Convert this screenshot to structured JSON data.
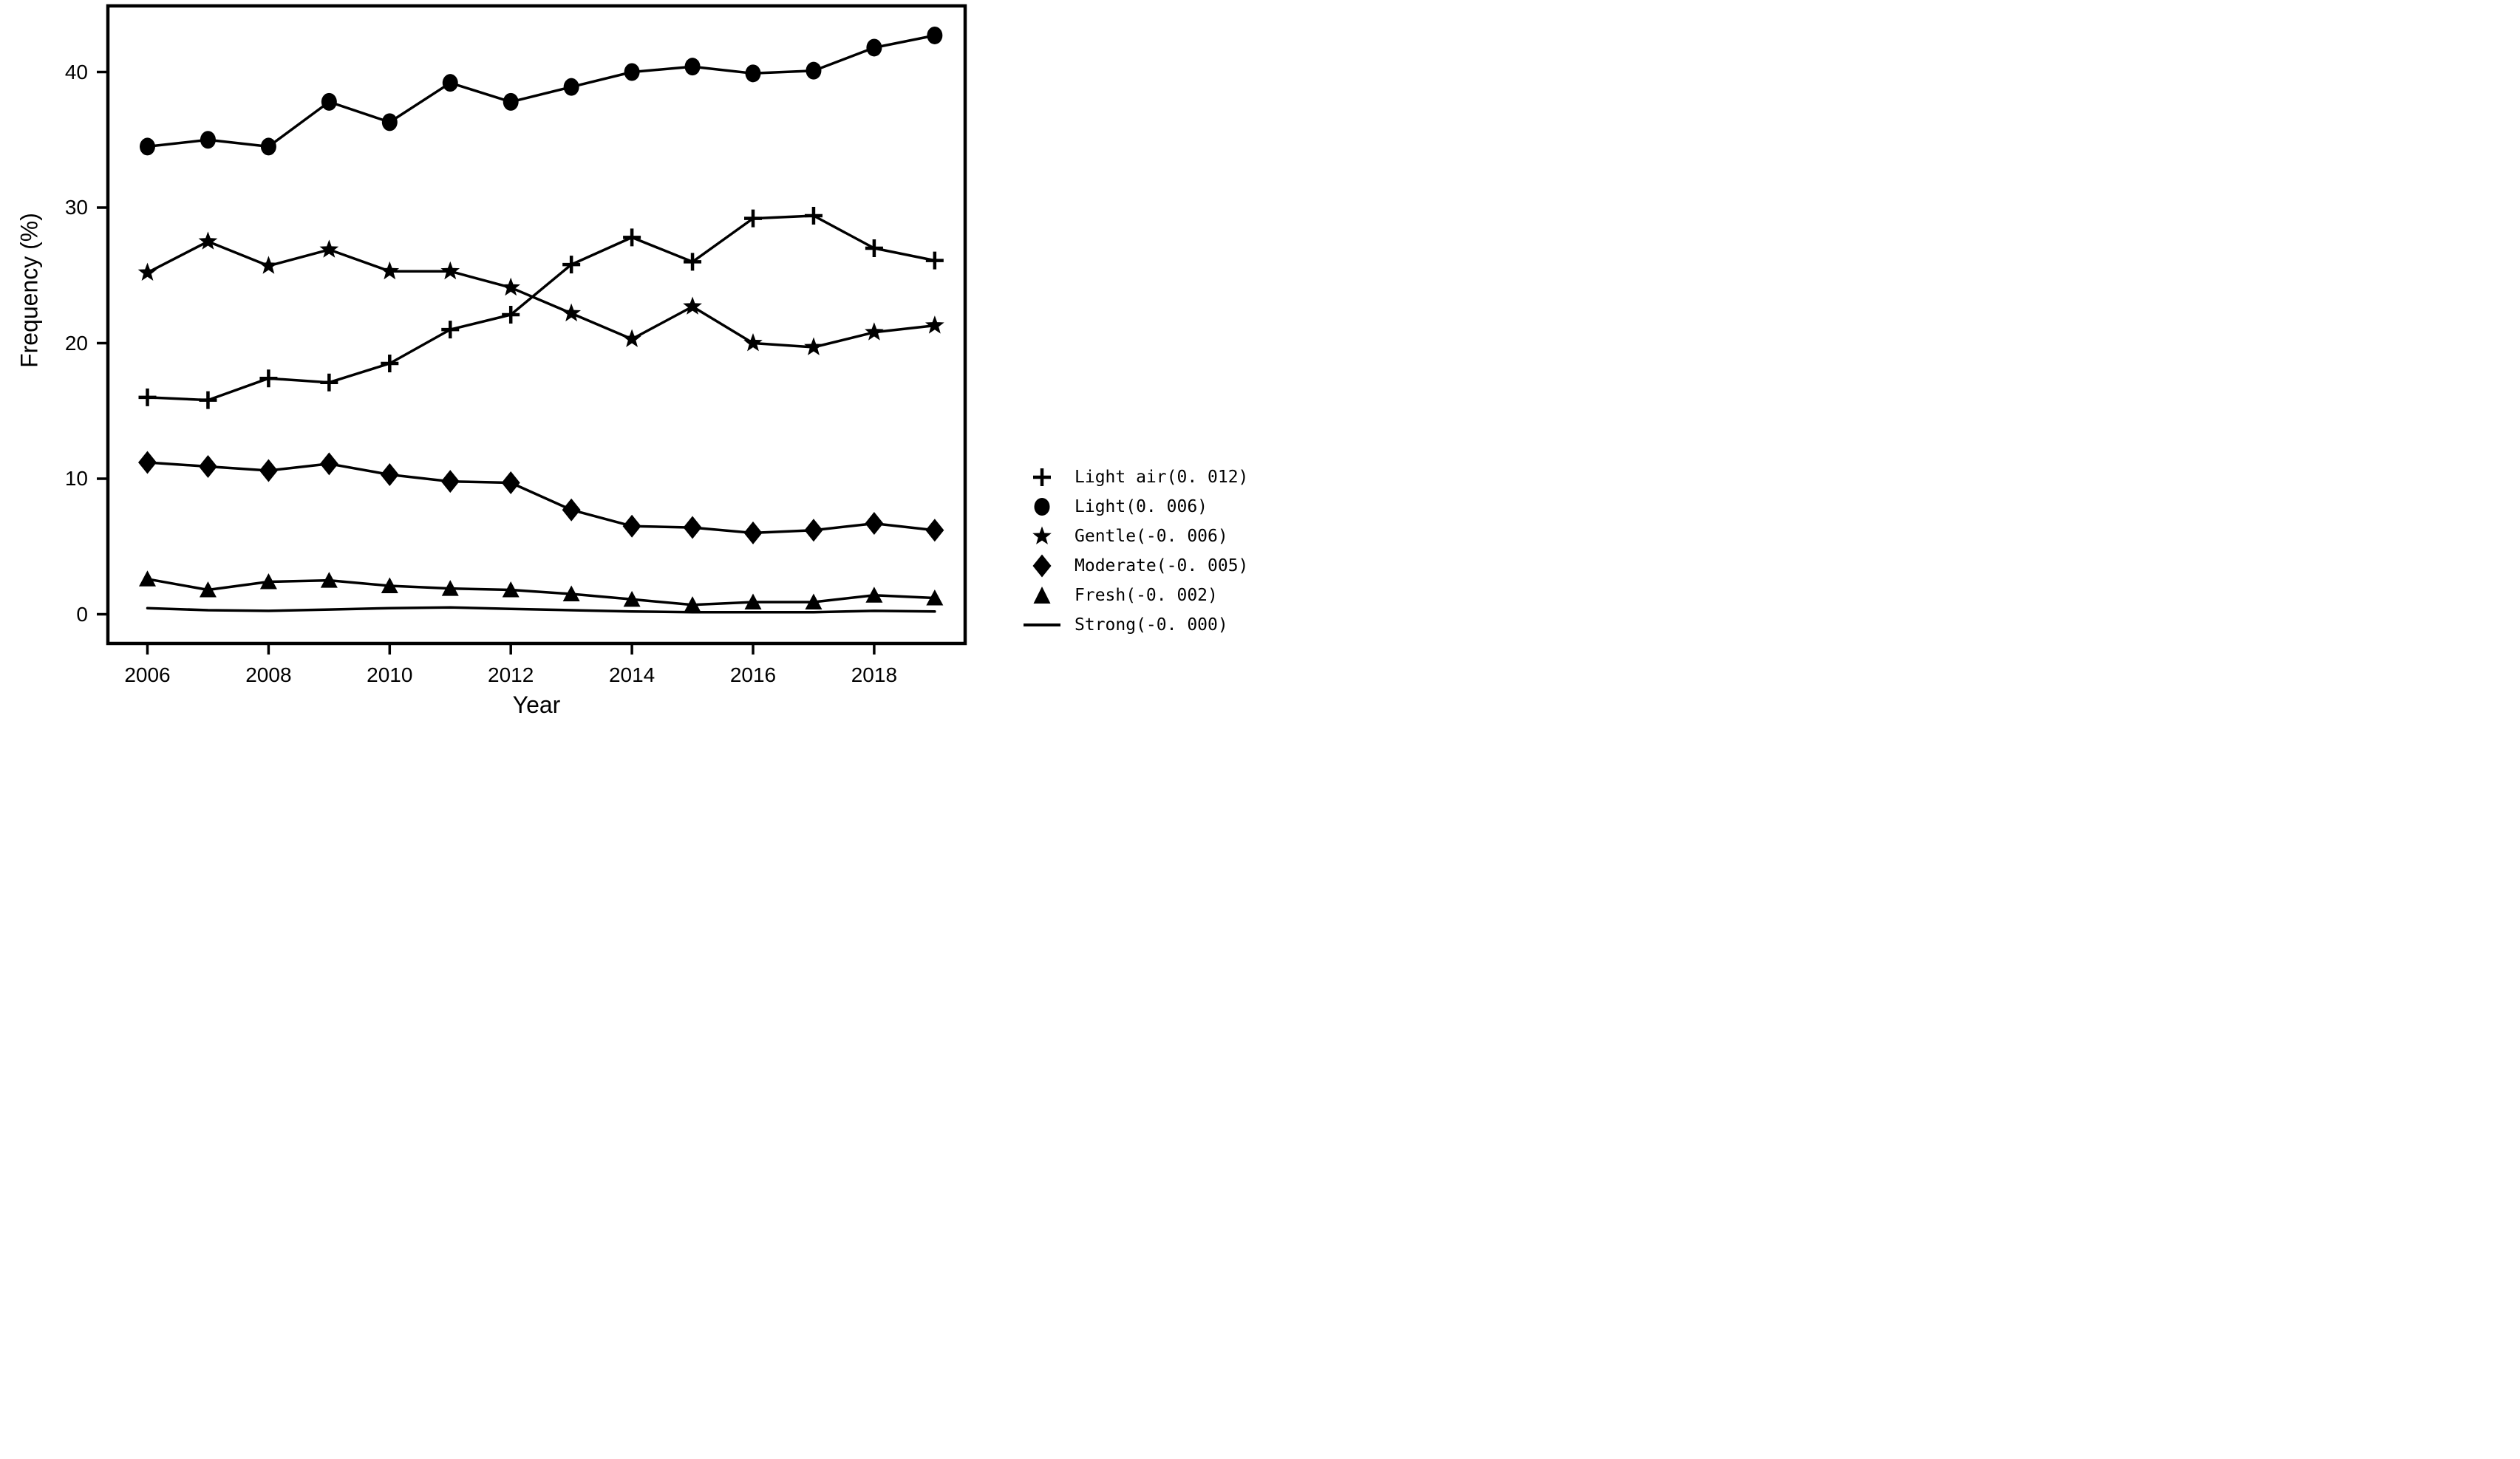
{
  "figure": {
    "background": "#ffffff",
    "ink": "#000000"
  },
  "chart_data": {
    "type": "line",
    "title": "",
    "xlabel": "Year",
    "ylabel": "Frequency (%)",
    "grid": false,
    "legend_position": "outside-right",
    "xlim": [
      2005.35,
      2019.55
    ],
    "ylim": [
      -2.2,
      44.9
    ],
    "y_ticks": [
      "0",
      "10",
      "20",
      "30",
      "40"
    ],
    "y_tick_values": [
      0,
      10,
      20,
      30,
      40
    ],
    "x_tick_labels": [
      "2006",
      "2008",
      "2010",
      "2012",
      "2014",
      "2016",
      "2018"
    ],
    "x_tick_values": [
      2006,
      2008,
      2010,
      2012,
      2014,
      2016,
      2018
    ],
    "x": [
      2006,
      2007,
      2008,
      2009,
      2010,
      2011,
      2012,
      2013,
      2014,
      2015,
      2016,
      2017,
      2018,
      2019
    ],
    "series": [
      {
        "name": "Light air",
        "legend_label": "Light air(0. 012)",
        "marker": "plus",
        "values": [
          16.0,
          15.8,
          17.4,
          17.1,
          18.5,
          21.0,
          22.1,
          25.8,
          27.8,
          26.0,
          29.2,
          29.4,
          27.0,
          26.1
        ]
      },
      {
        "name": "Light",
        "legend_label": "Light(0. 006)",
        "marker": "circle",
        "values": [
          34.5,
          35.0,
          34.5,
          37.8,
          36.3,
          39.2,
          37.8,
          38.9,
          40.0,
          40.4,
          39.9,
          40.1,
          41.8,
          42.7
        ]
      },
      {
        "name": "Gentle",
        "legend_label": "Gentle(-0. 006)",
        "marker": "star",
        "values": [
          25.2,
          27.5,
          25.7,
          26.9,
          25.3,
          25.3,
          24.1,
          22.2,
          20.3,
          22.7,
          20.0,
          19.7,
          20.8,
          21.3
        ]
      },
      {
        "name": "Moderate",
        "legend_label": "Moderate(-0. 005)",
        "marker": "diamond",
        "values": [
          11.2,
          10.9,
          10.6,
          11.1,
          10.3,
          9.8,
          9.7,
          7.7,
          6.5,
          6.4,
          6.0,
          6.2,
          6.7,
          6.2
        ]
      },
      {
        "name": "Fresh",
        "legend_label": "Fresh(-0. 002)",
        "marker": "triangle",
        "values": [
          2.6,
          1.8,
          2.4,
          2.5,
          2.1,
          1.9,
          1.8,
          1.5,
          1.1,
          0.7,
          0.9,
          0.9,
          1.4,
          1.2
        ]
      },
      {
        "name": "Strong",
        "legend_label": "Strong(-0. 000)",
        "marker": "line",
        "values": [
          0.45,
          0.3,
          0.25,
          0.35,
          0.45,
          0.5,
          0.4,
          0.3,
          0.2,
          0.15,
          0.15,
          0.15,
          0.25,
          0.2
        ]
      }
    ]
  }
}
